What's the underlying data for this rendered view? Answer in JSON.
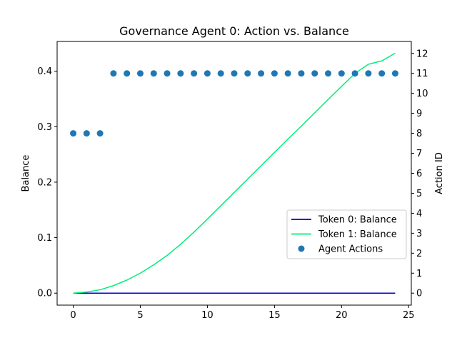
{
  "chart_data": {
    "type": "line",
    "title": "Governance Agent 0: Action vs. Balance",
    "xlabel": "",
    "ylabel": "Balance",
    "y2label": "Action ID",
    "xlim": [
      -1.2,
      25.2
    ],
    "ylim": [
      -0.0216,
      0.4536
    ],
    "y2lim": [
      -0.6,
      12.6
    ],
    "xticks": [
      0,
      5,
      10,
      15,
      20,
      25
    ],
    "yticks": [
      0.0,
      0.1,
      0.2,
      0.3,
      0.4
    ],
    "ytick_labels": [
      "0.0",
      "0.1",
      "0.2",
      "0.3",
      "0.4"
    ],
    "y2ticks": [
      0,
      1,
      2,
      3,
      4,
      5,
      6,
      7,
      8,
      9,
      10,
      11,
      12
    ],
    "grid": false,
    "legend": "center-right",
    "x": [
      0,
      1,
      2,
      3,
      4,
      5,
      6,
      7,
      8,
      9,
      10,
      11,
      12,
      13,
      14,
      15,
      16,
      17,
      18,
      19,
      20,
      21,
      22,
      23,
      24
    ],
    "series": [
      {
        "name": "Token 0: Balance",
        "kind": "line",
        "axis": "left",
        "color": "#0000cc",
        "values": [
          0,
          0,
          0,
          0,
          0,
          0,
          0,
          0,
          0,
          0,
          0,
          0,
          0,
          0,
          0,
          0,
          0,
          0,
          0,
          0,
          0,
          0,
          0,
          0,
          0
        ]
      },
      {
        "name": "Token 1: Balance",
        "kind": "line",
        "axis": "left",
        "color": "#00ee77",
        "values": [
          0.0,
          0.002,
          0.006,
          0.0135,
          0.0235,
          0.036,
          0.051,
          0.068,
          0.088,
          0.11,
          0.1335,
          0.1575,
          0.1815,
          0.2055,
          0.2295,
          0.2535,
          0.2775,
          0.301,
          0.325,
          0.349,
          0.3725,
          0.396,
          0.4125,
          0.4185,
          0.4325
        ]
      },
      {
        "name": "Agent Actions",
        "kind": "scatter",
        "axis": "right",
        "color": "#1f77b4",
        "values": [
          8,
          8,
          8,
          11,
          11,
          11,
          11,
          11,
          11,
          11,
          11,
          11,
          11,
          11,
          11,
          11,
          11,
          11,
          11,
          11,
          11,
          11,
          11,
          11,
          11
        ]
      }
    ]
  }
}
